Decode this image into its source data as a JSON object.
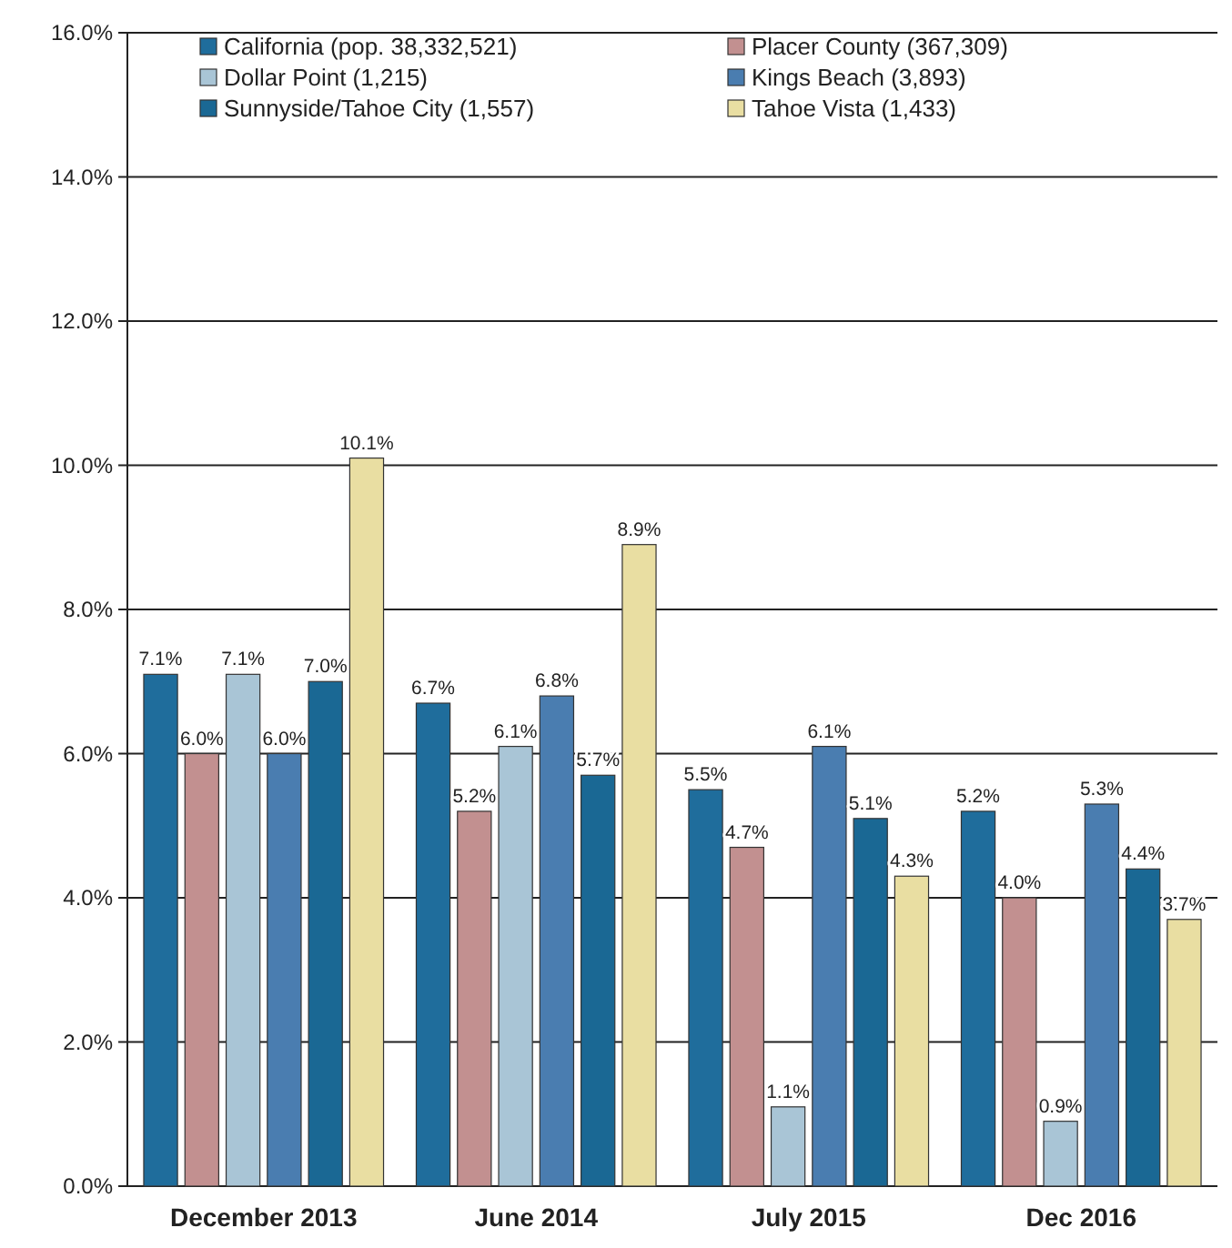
{
  "chart_data": {
    "type": "bar",
    "categories": [
      "December 2013",
      "June 2014",
      "July 2015",
      "Dec 2016"
    ],
    "series": [
      {
        "name": "California (pop. 38,332,521)",
        "color": "#1f6d9c",
        "values": [
          7.1,
          6.7,
          5.5,
          5.2
        ],
        "value_labels": [
          "7.1%",
          "6.7%",
          "5.5%",
          "5.2%"
        ]
      },
      {
        "name": "Placer County (367,309)",
        "color": "#c29090",
        "values": [
          6.0,
          5.2,
          4.7,
          4.0
        ],
        "value_labels": [
          "6.0%",
          "5.2%",
          "4.7%",
          "4.0%"
        ]
      },
      {
        "name": "Dollar Point (1,215)",
        "color": "#a9c5d6",
        "values": [
          7.1,
          6.1,
          1.1,
          0.9
        ],
        "value_labels": [
          "7.1%",
          "6.1%",
          "1.1%",
          "0.9%"
        ]
      },
      {
        "name": "Kings Beach (3,893)",
        "color": "#4a7db0",
        "values": [
          6.0,
          6.8,
          6.1,
          5.3
        ],
        "value_labels": [
          "6.0%",
          "6.8%",
          "6.1%",
          "5.3%"
        ]
      },
      {
        "name": "Sunnyside/Tahoe City (1,557)",
        "color": "#1a6894",
        "values": [
          7.0,
          5.7,
          5.1,
          4.4
        ],
        "value_labels": [
          "7.0%",
          "5.7%",
          "5.1%",
          "4.4%"
        ]
      },
      {
        "name": "Tahoe Vista (1,433)",
        "color": "#e9dea2",
        "values": [
          10.1,
          8.9,
          4.3,
          3.7
        ],
        "value_labels": [
          "10.1%",
          "8.9%",
          "4.3%",
          "3.7%"
        ]
      }
    ],
    "ylim": [
      0,
      16
    ],
    "yticks": [
      {
        "value": 0,
        "label": "0.0%"
      },
      {
        "value": 2,
        "label": "2.0%"
      },
      {
        "value": 4,
        "label": "4.0%"
      },
      {
        "value": 6,
        "label": "6.0%"
      },
      {
        "value": 8,
        "label": "8.0%"
      },
      {
        "value": 10,
        "label": "10.0%"
      },
      {
        "value": 12,
        "label": "12.0%"
      },
      {
        "value": 14,
        "label": "14.0%"
      },
      {
        "value": 16,
        "label": "16.0%"
      }
    ],
    "grid": "y",
    "legend": "top"
  }
}
